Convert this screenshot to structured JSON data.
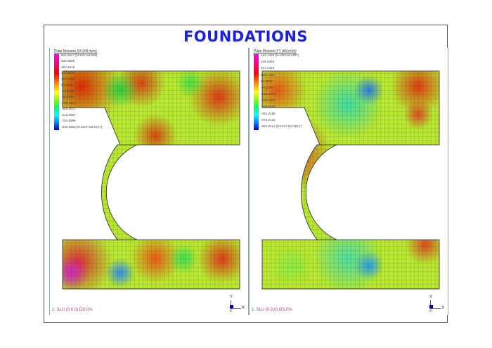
{
  "title": "FOUNDATIONS",
  "panels": [
    {
      "heading": "Plate Moment XX (kN m/m)",
      "legend": [
        "601.6527 [N:120,Nd:638]",
        "536.2588",
        "397.4518",
        "244.6578",
        "141.3798",
        "58.5188",
        "-13.2438",
        "-90.3858",
        "-198.3917",
        "-358.3917",
        "-512.6957",
        "-754.6896",
        "-826.2866 [N:2297,Nd:1017]"
      ],
      "status": "1: SLU  (0,0,0)  DS:0%"
    },
    {
      "heading": "Plate Moment YY (kN m/m)",
      "legend": [
        "494.1326 [N:232,Nd:2307]",
        "428.5364",
        "317.2410",
        "206.1456",
        "94.9502",
        "-16.2452",
        "-127.4406",
        "-238.6360",
        "-349.8254",
        "-461.0198",
        "-572.2142",
        "-822.8114 [N:1017,Nd:1017]"
      ],
      "status": "1: SLU  (0,0,0)  DS:0%"
    }
  ],
  "axes": {
    "y": "Y",
    "z": "Z",
    "x": "X"
  },
  "colors": {
    "title": "#1a22e0",
    "status": "#b04050",
    "axis_marker": "#0000cc"
  }
}
